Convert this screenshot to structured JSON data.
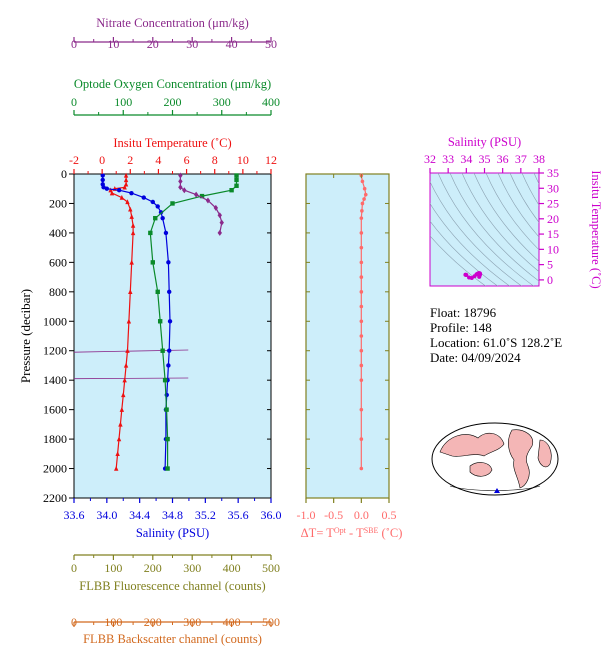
{
  "colors": {
    "nitrate": "#8b2a8b",
    "oxygen": "#0a8a2a",
    "temperature": "#ee1111",
    "salinity": "#0000dd",
    "deltaT": "#ff6a6a",
    "fluorescence": "#808020",
    "backscatter": "#d2691e",
    "magenta": "#cc00cc",
    "panel_bg": "#cdeefa"
  },
  "info": {
    "float": "Float:  18796",
    "profile": "Profile:  148",
    "location": "Location:  61.0˚S  128.2˚E",
    "date": "Date:  04/09/2024"
  },
  "chart_data": [
    {
      "type": "line",
      "panel": "main",
      "ylabel": "Pressure (decibar)",
      "ylim": [
        2200,
        0
      ],
      "y_ticks": [
        "0",
        "200",
        "400",
        "600",
        "800",
        "1000",
        "1200",
        "1400",
        "1600",
        "1800",
        "2000",
        "2200"
      ],
      "axes": {
        "nitrate": {
          "label": "Nitrate Concentration (μm/kg)",
          "range": [
            0,
            50
          ],
          "ticks": [
            "0",
            "10",
            "20",
            "30",
            "40",
            "50"
          ]
        },
        "oxygen": {
          "label": "Optode Oxygen Concentration (μm/kg)",
          "range": [
            0,
            400
          ],
          "ticks": [
            "0",
            "100",
            "200",
            "300",
            "400"
          ]
        },
        "temperature": {
          "label": "Insitu Temperature (˚C)",
          "range": [
            -2,
            12
          ],
          "ticks": [
            "-2",
            "0",
            "2",
            "4",
            "6",
            "8",
            "10",
            "12"
          ]
        },
        "salinity": {
          "label": "Salinity (PSU)",
          "range": [
            33.6,
            36.0
          ],
          "ticks": [
            "33.6",
            "34.0",
            "34.4",
            "34.8",
            "35.2",
            "35.6",
            "36.0"
          ]
        },
        "fluorescence": {
          "label": "FLBB Fluorescence channel (counts)",
          "range": [
            0,
            500
          ],
          "ticks": [
            "0",
            "100",
            "200",
            "300",
            "400",
            "500"
          ]
        },
        "backscatter": {
          "label": "FLBB Backscatter channel (counts)",
          "range": [
            0,
            500
          ],
          "ticks": [
            "0",
            "100",
            "200",
            "300",
            "400",
            "500"
          ]
        }
      },
      "series": [
        {
          "name": "Insitu Temperature",
          "axis": "temperature",
          "color": "#ee1111",
          "marker": "triangle",
          "x": [
            1.7,
            1.7,
            1.7,
            1.6,
            0.9,
            0.6,
            0.7,
            1.4,
            1.8,
            2.0,
            2.1,
            2.2,
            2.2,
            2.1,
            2.0,
            1.9,
            1.8,
            1.7,
            1.6,
            1.5,
            1.4,
            1.3,
            1.2,
            1.1,
            1.0
          ],
          "y": [
            10,
            40,
            70,
            90,
            100,
            110,
            130,
            160,
            190,
            240,
            290,
            350,
            400,
            600,
            800,
            1000,
            1200,
            1300,
            1400,
            1500,
            1600,
            1700,
            1800,
            1900,
            2000
          ]
        },
        {
          "name": "Salinity",
          "axis": "salinity",
          "color": "#0000dd",
          "marker": "circle",
          "x": [
            33.95,
            33.95,
            33.95,
            33.96,
            34.0,
            34.15,
            34.3,
            34.45,
            34.56,
            34.62,
            34.66,
            34.68,
            34.72,
            34.75,
            34.76,
            34.77,
            34.76,
            34.75,
            34.74,
            34.73,
            34.72,
            34.72,
            34.71
          ],
          "y": [
            10,
            40,
            70,
            90,
            100,
            110,
            130,
            160,
            190,
            220,
            260,
            300,
            400,
            600,
            800,
            1000,
            1200,
            1300,
            1400,
            1500,
            1600,
            1800,
            2000
          ]
        },
        {
          "name": "Optode Oxygen Concentration",
          "axis": "oxygen",
          "color": "#0a8a2a",
          "marker": "square",
          "x": [
            330,
            330,
            330,
            320,
            260,
            200,
            165,
            155,
            160,
            170,
            175,
            180,
            185,
            188,
            190,
            190
          ],
          "y": [
            10,
            40,
            80,
            110,
            150,
            200,
            300,
            400,
            600,
            800,
            1000,
            1200,
            1400,
            1600,
            1800,
            2000
          ]
        },
        {
          "name": "Nitrate Concentration",
          "axis": "nitrate",
          "color": "#8b2a8b",
          "marker": "diamond",
          "x": [
            27,
            27,
            27,
            28,
            31,
            34,
            36,
            37,
            37.5,
            37
          ],
          "y": [
            10,
            50,
            90,
            110,
            140,
            180,
            230,
            280,
            330,
            400
          ]
        }
      ],
      "lines": [
        {
          "name": "Nitrate line 1200",
          "axis": "nitrate",
          "color": "#8b2a8b",
          "x": [
            0,
            29
          ],
          "y": [
            1210,
            1195
          ]
        },
        {
          "name": "Nitrate line 1400",
          "axis": "nitrate",
          "color": "#8b2a8b",
          "x": [
            0,
            29
          ],
          "y": [
            1390,
            1385
          ]
        }
      ]
    },
    {
      "type": "line",
      "panel": "delta",
      "xlabel_prefix": "ΔT= T",
      "xlabel_sup1": "Opt",
      "xlabel_mid": " - T",
      "xlabel_sup2": "SBE",
      "xlabel_suffix": " (˚C)",
      "xlim": [
        -1.0,
        0.5
      ],
      "x_ticks": [
        "-1.0",
        "-0.5",
        "0.0",
        "0.5"
      ],
      "ylim": [
        2200,
        0
      ],
      "series": [
        {
          "name": "Temperature difference",
          "color": "#ff6a6a",
          "marker": "circle",
          "x": [
            0.0,
            0.02,
            0.06,
            0.08,
            0.05,
            0.02,
            0.01,
            0.0,
            0.0,
            0.0,
            0.0,
            0.0,
            0.0,
            0.0,
            0.0,
            0.0,
            0.0,
            0.0,
            0.0,
            0.0,
            0.0,
            0.0
          ],
          "y": [
            10,
            50,
            100,
            140,
            170,
            200,
            250,
            300,
            400,
            500,
            600,
            700,
            800,
            900,
            1000,
            1100,
            1200,
            1300,
            1400,
            1600,
            1800,
            2000
          ]
        }
      ]
    },
    {
      "type": "scatter",
      "panel": "ts",
      "title": "Salinity (PSU)",
      "ylabel": "Insitu Temperature (˚C)",
      "xlim": [
        32,
        38
      ],
      "ylim": [
        -2,
        35
      ],
      "x_ticks": [
        "32",
        "33",
        "34",
        "35",
        "36",
        "37",
        "38"
      ],
      "y_ticks": [
        "0",
        "5",
        "10",
        "15",
        "20",
        "25",
        "30",
        "35"
      ],
      "series": [
        {
          "name": "T-S points",
          "color": "#cc00cc",
          "marker": "circle",
          "x": [
            33.95,
            33.97,
            34.0,
            34.15,
            34.3,
            34.45,
            34.56,
            34.62,
            34.66,
            34.68,
            34.72,
            34.75,
            34.76,
            34.74,
            34.72,
            34.71
          ],
          "y": [
            1.7,
            1.7,
            1.6,
            0.8,
            0.6,
            1.2,
            1.8,
            2.0,
            2.1,
            2.2,
            2.2,
            2.1,
            1.9,
            1.6,
            1.3,
            1.0
          ]
        }
      ]
    }
  ]
}
